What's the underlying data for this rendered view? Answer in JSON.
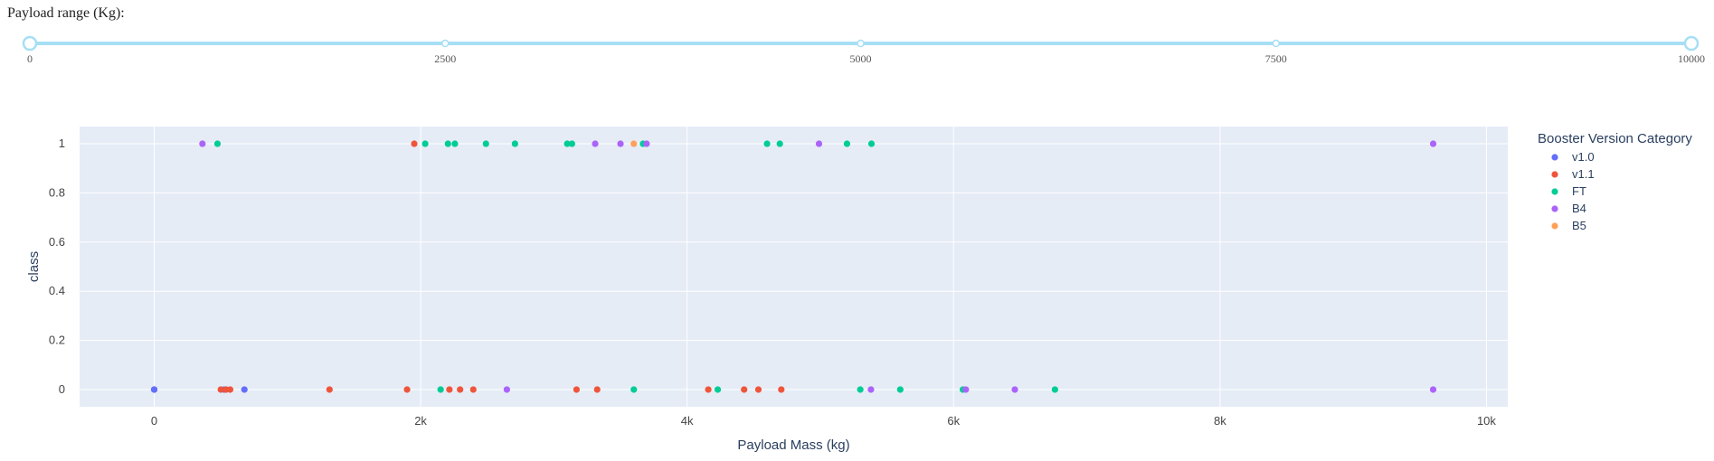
{
  "slider": {
    "label": "Payload range (Kg):",
    "min": 0,
    "max": 10000,
    "value": [
      0,
      10000
    ],
    "marks": [
      "0",
      "2500",
      "5000",
      "7500",
      "10000"
    ],
    "mark_values": [
      0,
      2500,
      5000,
      7500,
      10000
    ],
    "track_color": "#a6dff5",
    "handle_color": "#a6dff5"
  },
  "chart_data": {
    "type": "scatter",
    "title": "",
    "xlabel": "Payload Mass (kg)",
    "ylabel": "class",
    "xlim": [
      -560,
      10160
    ],
    "ylim": [
      -0.07,
      1.07
    ],
    "xticks": [
      0,
      2000,
      4000,
      6000,
      8000,
      10000
    ],
    "xtick_labels": [
      "0",
      "2k",
      "4k",
      "6k",
      "8k",
      "10k"
    ],
    "yticks": [
      0,
      0.2,
      0.4,
      0.6,
      0.8,
      1
    ],
    "ytick_labels": [
      "0",
      "0.2",
      "0.4",
      "0.6",
      "0.8",
      "1"
    ],
    "grid": true,
    "plot_bgcolor": "#e5ecf6",
    "legend": {
      "title": "Booster Version Category",
      "placement": "right"
    },
    "series": [
      {
        "name": "v1.0",
        "color": "#636efa",
        "x": [
          0,
          0,
          525,
          677
        ],
        "y": [
          0,
          0,
          0,
          0
        ]
      },
      {
        "name": "v1.1",
        "color": "#ef553b",
        "x": [
          500,
          540,
          570,
          1316,
          1898,
          1952,
          2216,
          2296,
          2395,
          3170,
          3325,
          4159,
          4428,
          4535,
          4707
        ],
        "y": [
          0,
          0,
          0,
          0,
          0,
          1,
          0,
          0,
          0,
          0,
          0,
          0,
          0,
          0,
          0
        ]
      },
      {
        "name": "FT",
        "color": "#00cc96",
        "x": [
          475,
          2034,
          2150,
          2205,
          2257,
          2490,
          2708,
          3100,
          3136,
          3600,
          3669,
          4230,
          4600,
          4696,
          5200,
          5300,
          5384,
          5600,
          6070,
          6761
        ],
        "y": [
          1,
          1,
          0,
          1,
          1,
          1,
          1,
          1,
          1,
          0,
          1,
          0,
          1,
          1,
          1,
          0,
          1,
          0,
          0,
          0
        ]
      },
      {
        "name": "B4",
        "color": "#ab63fa",
        "x": [
          362,
          2647,
          3310,
          3500,
          3696,
          4990,
          5380,
          6092,
          6460,
          9600,
          9600
        ],
        "y": [
          1,
          0,
          1,
          1,
          1,
          1,
          0,
          0,
          0,
          1,
          0
        ]
      },
      {
        "name": "B5",
        "color": "#ffa15a",
        "x": [
          3600
        ],
        "y": [
          1
        ]
      }
    ]
  }
}
